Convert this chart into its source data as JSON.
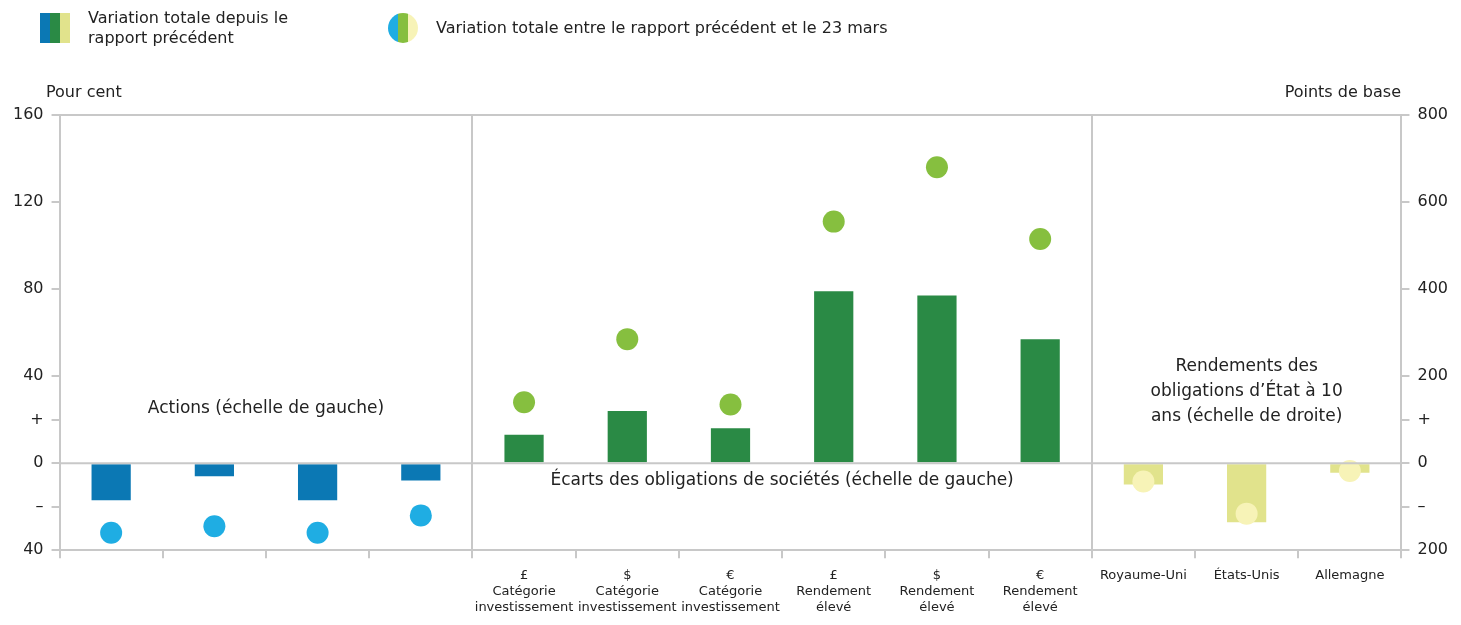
{
  "chart_data": {
    "type": "bar",
    "ylabel": "Pour cent",
    "y2label": "Points de base",
    "categories": [
      null,
      null,
      null,
      null,
      "£ Catégorie investissement",
      "$ Catégorie investissement",
      "€ Catégorie investissement",
      "£ Rendement élevé",
      "$ Rendement élevé",
      "€ Rendement élevé",
      "Royaume-Uni",
      "États-Unis",
      "Allemagne"
    ],
    "series": [
      {
        "name": "Variation totale depuis le rapport précédent",
        "colors": [
          "#0b78b4",
          "#0b78b4",
          "#0b78b4",
          "#0b78b4",
          "#2a8a45",
          "#2a8a45",
          "#2a8a45",
          "#2a8a45",
          "#2a8a45",
          "#2a8a45",
          null,
          null,
          null
        ],
        "values": [
          -17,
          -6,
          -17,
          -8,
          13,
          24,
          16,
          79,
          77,
          57,
          null,
          null,
          null
        ]
      },
      {
        "axis": "y2",
        "colors": [
          null,
          null,
          null,
          null,
          null,
          null,
          null,
          null,
          null,
          null,
          "#e1e38c",
          "#e1e38c",
          "#e1e38c"
        ],
        "values": [
          null,
          null,
          null,
          null,
          null,
          null,
          null,
          null,
          null,
          null,
          -49,
          -136,
          -22
        ]
      },
      {
        "name": "Variation totale entre le rapport précédent et le 23 mars",
        "type": "scatter",
        "colors": [
          "#1fade3",
          "#1fade3",
          "#1fade3",
          "#1fade3",
          "#86bf3f",
          "#86bf3f",
          "#86bf3f",
          "#86bf3f",
          "#86bf3f",
          "#86bf3f",
          null,
          null,
          null
        ],
        "values": [
          -32,
          -29,
          -32,
          -24,
          28,
          57,
          27,
          111,
          136,
          103,
          null,
          null,
          null
        ]
      },
      {
        "type": "scatter",
        "axis": "y2",
        "colors": [
          null,
          null,
          null,
          null,
          null,
          null,
          null,
          null,
          null,
          null,
          "#f7f3b7",
          "#f7f3b7",
          "#f7f3b7"
        ],
        "values": [
          null,
          null,
          null,
          null,
          null,
          null,
          null,
          null,
          null,
          null,
          -42,
          -116,
          -18
        ]
      }
    ],
    "ylim": [
      -40,
      160
    ],
    "yticks": [
      {
        "value": -40,
        "label": "40"
      },
      {
        "value": -20,
        "label": "–"
      },
      0,
      {
        "value": 20,
        "label": "+"
      },
      40,
      80,
      120,
      160
    ],
    "y2lim": [
      -200,
      800
    ],
    "y2ticks": [
      {
        "value": -200,
        "label": "200"
      },
      {
        "value": -100,
        "label": "–"
      },
      0,
      {
        "value": 100,
        "label": "+"
      },
      200,
      400,
      600,
      800
    ],
    "annotations": [
      "Actions (échelle de gauche)",
      "Écarts des obligations de sociétés (échelle de gauche)",
      "Rendements des obligations d’État à 10 ans (échelle de droite)"
    ],
    "ref_lines": [
      {
        "axis": "y",
        "value": 0,
        "color": "#c8c8c8"
      }
    ],
    "marker": "circle",
    "grid": false,
    "legend": "top left"
  }
}
